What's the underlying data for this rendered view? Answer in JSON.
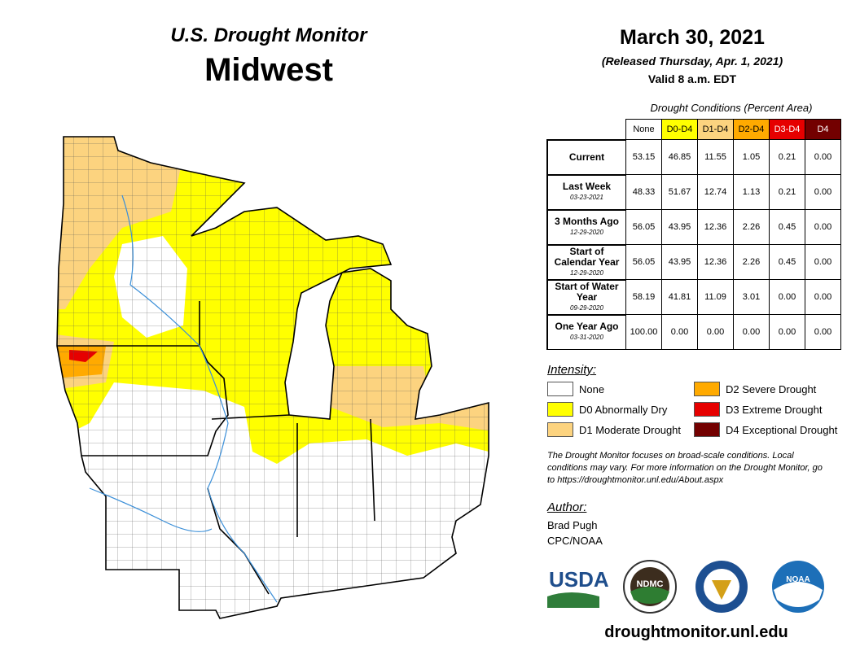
{
  "header": {
    "title": "U.S. Drought Monitor",
    "region": "Midwest"
  },
  "date": {
    "title": "March 30, 2021",
    "released": "(Released Thursday, Apr. 1, 2021)",
    "valid": "Valid 8 a.m. EDT"
  },
  "table": {
    "caption": "Drought Conditions (Percent Area)",
    "columns": [
      "None",
      "D0-D4",
      "D1-D4",
      "D2-D4",
      "D3-D4",
      "D4"
    ],
    "rows": [
      {
        "label": "Current",
        "values": [
          "53.15",
          "46.85",
          "11.55",
          "1.05",
          "0.21",
          "0.00"
        ]
      },
      {
        "label": "Last Week",
        "date": "03-23-2021",
        "values": [
          "48.33",
          "51.67",
          "12.74",
          "1.13",
          "0.21",
          "0.00"
        ]
      },
      {
        "label": "3 Months Ago",
        "date": "12-29-2020",
        "values": [
          "56.05",
          "43.95",
          "12.36",
          "2.26",
          "0.45",
          "0.00"
        ]
      },
      {
        "label": "Start of Calendar Year",
        "date": "12-29-2020",
        "values": [
          "56.05",
          "43.95",
          "12.36",
          "2.26",
          "0.45",
          "0.00"
        ]
      },
      {
        "label": "Start of Water Year",
        "date": "09-29-2020",
        "values": [
          "58.19",
          "41.81",
          "11.09",
          "3.01",
          "0.00",
          "0.00"
        ]
      },
      {
        "label": "One Year Ago",
        "date": "03-31-2020",
        "values": [
          "100.00",
          "0.00",
          "0.00",
          "0.00",
          "0.00",
          "0.00"
        ]
      }
    ]
  },
  "legend": {
    "title": "Intensity:",
    "items": [
      {
        "label": "None",
        "color": "#ffffff"
      },
      {
        "label": "D0 Abnormally Dry",
        "color": "#ffff00"
      },
      {
        "label": "D1 Moderate Drought",
        "color": "#fcd37f"
      },
      {
        "label": "D2 Severe Drought",
        "color": "#ffaa00"
      },
      {
        "label": "D3 Extreme Drought",
        "color": "#e60000"
      },
      {
        "label": "D4 Exceptional Drought",
        "color": "#730000"
      }
    ]
  },
  "note": "The Drought Monitor focuses on broad-scale conditions. Local conditions may vary. For more information on the Drought Monitor, go to https://droughtmonitor.unl.edu/About.aspx",
  "author": {
    "heading": "Author:",
    "name": "Brad Pugh",
    "org": "CPC/NOAA"
  },
  "logos": [
    "USDA",
    "NDMC",
    "NOAA"
  ],
  "footer": "droughtmonitor.unl.edu"
}
